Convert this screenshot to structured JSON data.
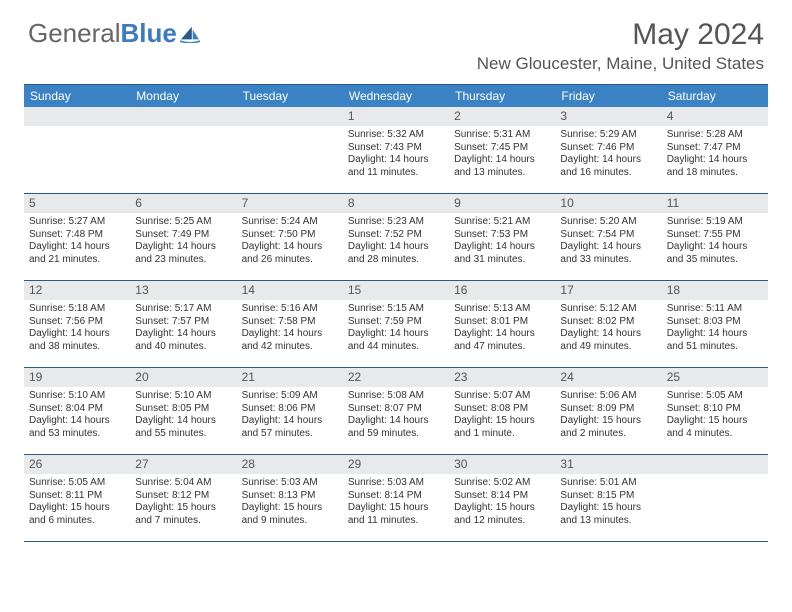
{
  "logo": {
    "text1": "General",
    "text2": "Blue"
  },
  "title": "May 2024",
  "location": "New Gloucester, Maine, United States",
  "weekdays": [
    "Sunday",
    "Monday",
    "Tuesday",
    "Wednesday",
    "Thursday",
    "Friday",
    "Saturday"
  ],
  "colors": {
    "header_bg": "#3b82c4",
    "border": "#2a5a8a",
    "daynum_bg": "#e8e9ea"
  },
  "weeks": [
    [
      {
        "n": "",
        "sr": "",
        "ss": "",
        "dl": ""
      },
      {
        "n": "",
        "sr": "",
        "ss": "",
        "dl": ""
      },
      {
        "n": "",
        "sr": "",
        "ss": "",
        "dl": ""
      },
      {
        "n": "1",
        "sr": "Sunrise: 5:32 AM",
        "ss": "Sunset: 7:43 PM",
        "dl": "Daylight: 14 hours and 11 minutes."
      },
      {
        "n": "2",
        "sr": "Sunrise: 5:31 AM",
        "ss": "Sunset: 7:45 PM",
        "dl": "Daylight: 14 hours and 13 minutes."
      },
      {
        "n": "3",
        "sr": "Sunrise: 5:29 AM",
        "ss": "Sunset: 7:46 PM",
        "dl": "Daylight: 14 hours and 16 minutes."
      },
      {
        "n": "4",
        "sr": "Sunrise: 5:28 AM",
        "ss": "Sunset: 7:47 PM",
        "dl": "Daylight: 14 hours and 18 minutes."
      }
    ],
    [
      {
        "n": "5",
        "sr": "Sunrise: 5:27 AM",
        "ss": "Sunset: 7:48 PM",
        "dl": "Daylight: 14 hours and 21 minutes."
      },
      {
        "n": "6",
        "sr": "Sunrise: 5:25 AM",
        "ss": "Sunset: 7:49 PM",
        "dl": "Daylight: 14 hours and 23 minutes."
      },
      {
        "n": "7",
        "sr": "Sunrise: 5:24 AM",
        "ss": "Sunset: 7:50 PM",
        "dl": "Daylight: 14 hours and 26 minutes."
      },
      {
        "n": "8",
        "sr": "Sunrise: 5:23 AM",
        "ss": "Sunset: 7:52 PM",
        "dl": "Daylight: 14 hours and 28 minutes."
      },
      {
        "n": "9",
        "sr": "Sunrise: 5:21 AM",
        "ss": "Sunset: 7:53 PM",
        "dl": "Daylight: 14 hours and 31 minutes."
      },
      {
        "n": "10",
        "sr": "Sunrise: 5:20 AM",
        "ss": "Sunset: 7:54 PM",
        "dl": "Daylight: 14 hours and 33 minutes."
      },
      {
        "n": "11",
        "sr": "Sunrise: 5:19 AM",
        "ss": "Sunset: 7:55 PM",
        "dl": "Daylight: 14 hours and 35 minutes."
      }
    ],
    [
      {
        "n": "12",
        "sr": "Sunrise: 5:18 AM",
        "ss": "Sunset: 7:56 PM",
        "dl": "Daylight: 14 hours and 38 minutes."
      },
      {
        "n": "13",
        "sr": "Sunrise: 5:17 AM",
        "ss": "Sunset: 7:57 PM",
        "dl": "Daylight: 14 hours and 40 minutes."
      },
      {
        "n": "14",
        "sr": "Sunrise: 5:16 AM",
        "ss": "Sunset: 7:58 PM",
        "dl": "Daylight: 14 hours and 42 minutes."
      },
      {
        "n": "15",
        "sr": "Sunrise: 5:15 AM",
        "ss": "Sunset: 7:59 PM",
        "dl": "Daylight: 14 hours and 44 minutes."
      },
      {
        "n": "16",
        "sr": "Sunrise: 5:13 AM",
        "ss": "Sunset: 8:01 PM",
        "dl": "Daylight: 14 hours and 47 minutes."
      },
      {
        "n": "17",
        "sr": "Sunrise: 5:12 AM",
        "ss": "Sunset: 8:02 PM",
        "dl": "Daylight: 14 hours and 49 minutes."
      },
      {
        "n": "18",
        "sr": "Sunrise: 5:11 AM",
        "ss": "Sunset: 8:03 PM",
        "dl": "Daylight: 14 hours and 51 minutes."
      }
    ],
    [
      {
        "n": "19",
        "sr": "Sunrise: 5:10 AM",
        "ss": "Sunset: 8:04 PM",
        "dl": "Daylight: 14 hours and 53 minutes."
      },
      {
        "n": "20",
        "sr": "Sunrise: 5:10 AM",
        "ss": "Sunset: 8:05 PM",
        "dl": "Daylight: 14 hours and 55 minutes."
      },
      {
        "n": "21",
        "sr": "Sunrise: 5:09 AM",
        "ss": "Sunset: 8:06 PM",
        "dl": "Daylight: 14 hours and 57 minutes."
      },
      {
        "n": "22",
        "sr": "Sunrise: 5:08 AM",
        "ss": "Sunset: 8:07 PM",
        "dl": "Daylight: 14 hours and 59 minutes."
      },
      {
        "n": "23",
        "sr": "Sunrise: 5:07 AM",
        "ss": "Sunset: 8:08 PM",
        "dl": "Daylight: 15 hours and 1 minute."
      },
      {
        "n": "24",
        "sr": "Sunrise: 5:06 AM",
        "ss": "Sunset: 8:09 PM",
        "dl": "Daylight: 15 hours and 2 minutes."
      },
      {
        "n": "25",
        "sr": "Sunrise: 5:05 AM",
        "ss": "Sunset: 8:10 PM",
        "dl": "Daylight: 15 hours and 4 minutes."
      }
    ],
    [
      {
        "n": "26",
        "sr": "Sunrise: 5:05 AM",
        "ss": "Sunset: 8:11 PM",
        "dl": "Daylight: 15 hours and 6 minutes."
      },
      {
        "n": "27",
        "sr": "Sunrise: 5:04 AM",
        "ss": "Sunset: 8:12 PM",
        "dl": "Daylight: 15 hours and 7 minutes."
      },
      {
        "n": "28",
        "sr": "Sunrise: 5:03 AM",
        "ss": "Sunset: 8:13 PM",
        "dl": "Daylight: 15 hours and 9 minutes."
      },
      {
        "n": "29",
        "sr": "Sunrise: 5:03 AM",
        "ss": "Sunset: 8:14 PM",
        "dl": "Daylight: 15 hours and 11 minutes."
      },
      {
        "n": "30",
        "sr": "Sunrise: 5:02 AM",
        "ss": "Sunset: 8:14 PM",
        "dl": "Daylight: 15 hours and 12 minutes."
      },
      {
        "n": "31",
        "sr": "Sunrise: 5:01 AM",
        "ss": "Sunset: 8:15 PM",
        "dl": "Daylight: 15 hours and 13 minutes."
      },
      {
        "n": "",
        "sr": "",
        "ss": "",
        "dl": ""
      }
    ]
  ]
}
